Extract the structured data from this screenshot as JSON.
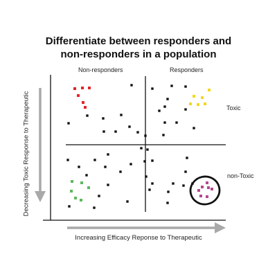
{
  "title_line1": "Differentiate between responders and",
  "title_line2": "non-responders in a population",
  "labels": {
    "non_responders": "Non-responders",
    "responders": "Responders",
    "toxic": "Toxic",
    "non_toxic": "non-Toxic",
    "x_axis": "Increasing Efficacy Reponse to Therapeutic",
    "y_axis": "Decreasing Toxic Response to Therapeutic"
  },
  "colors": {
    "axis": "#111111",
    "arrow": "#a9a9a9",
    "black_point": "#111111",
    "red": "#e0262b",
    "yellow": "#f2d81e",
    "green": "#5cb85c",
    "magenta": "#b5478f"
  },
  "groups": {
    "red": [
      [
        108,
        128
      ],
      [
        119,
        127
      ],
      [
        129,
        127
      ],
      [
        113,
        138
      ],
      [
        120,
        148
      ],
      [
        123,
        155
      ]
    ],
    "yellow": [
      [
        302,
        130
      ],
      [
        280,
        139
      ],
      [
        292,
        141
      ],
      [
        286,
        151
      ],
      [
        296,
        150
      ],
      [
        275,
        150
      ]
    ],
    "green": [
      [
        104,
        262
      ],
      [
        118,
        264
      ],
      [
        128,
        271
      ],
      [
        103,
        276
      ],
      [
        109,
        286
      ],
      [
        117,
        289
      ]
    ],
    "magenta": [
      [
        299,
        264
      ],
      [
        292,
        270
      ],
      [
        301,
        271
      ],
      [
        306,
        273
      ],
      [
        287,
        275
      ],
      [
        290,
        283
      ],
      [
        299,
        284
      ]
    ],
    "black": [
      [
        190,
        123
      ],
      [
        248,
        124
      ],
      [
        268,
        125
      ],
      [
        220,
        128
      ],
      [
        242,
        143
      ],
      [
        238,
        154
      ],
      [
        268,
        158
      ],
      [
        126,
        167
      ],
      [
        149,
        171
      ],
      [
        175,
        166
      ],
      [
        99,
        178
      ],
      [
        238,
        177
      ],
      [
        255,
        177
      ],
      [
        230,
        160
      ],
      [
        187,
        183
      ],
      [
        150,
        190
      ],
      [
        167,
        190
      ],
      [
        199,
        191
      ],
      [
        210,
        196
      ],
      [
        280,
        185
      ],
      [
        236,
        195
      ],
      [
        204,
        214
      ],
      [
        213,
        216
      ],
      [
        156,
        223
      ],
      [
        98,
        231
      ],
      [
        137,
        231
      ],
      [
        270,
        228
      ],
      [
        114,
        241
      ],
      [
        189,
        237
      ],
      [
        209,
        233
      ],
      [
        220,
        232
      ],
      [
        152,
        241
      ],
      [
        174,
        248
      ],
      [
        125,
        253
      ],
      [
        211,
        255
      ],
      [
        220,
        265
      ],
      [
        250,
        265
      ],
      [
        268,
        248
      ],
      [
        156,
        267
      ],
      [
        265,
        268
      ],
      [
        216,
        274
      ],
      [
        243,
        277
      ],
      [
        278,
        265
      ],
      [
        143,
        283
      ],
      [
        184,
        291
      ],
      [
        242,
        293
      ],
      [
        136,
        300
      ],
      [
        100,
        298
      ]
    ]
  },
  "highlight_circle": {
    "label": "magenta responder cluster"
  }
}
